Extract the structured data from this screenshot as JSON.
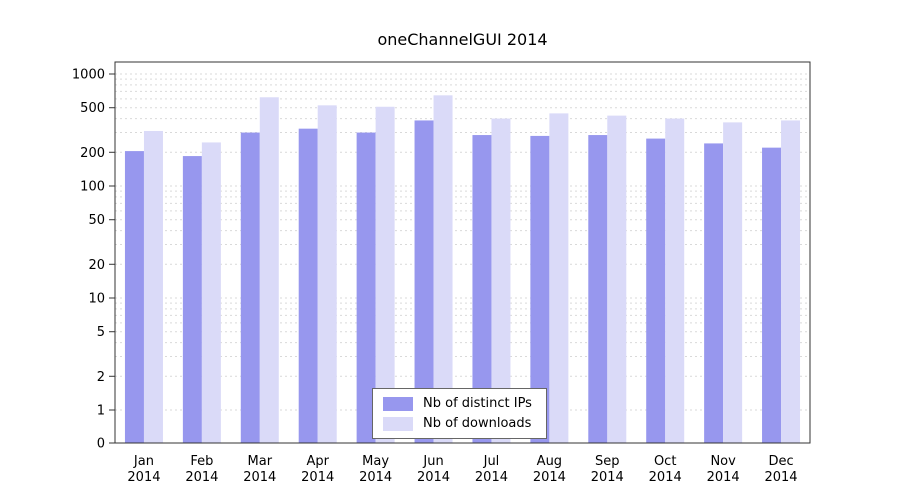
{
  "chart": {
    "background": "#ffffff",
    "colors": {
      "ips": "#9797ee",
      "downloads": "#dadaf8"
    },
    "gridline_color": "#d9d9d9",
    "axis_color": "#333333"
  },
  "chart_data": {
    "type": "bar",
    "title": "oneChannelGUI 2014",
    "categories": [
      "Jan 2014",
      "Feb 2014",
      "Mar 2014",
      "Apr 2014",
      "May 2014",
      "Jun 2014",
      "Jul 2014",
      "Aug 2014",
      "Sep 2014",
      "Oct 2014",
      "Nov 2014",
      "Dec 2014"
    ],
    "series": [
      {
        "name": "Nb of distinct IPs",
        "color_key": "ips",
        "values": [
          205,
          185,
          300,
          325,
          300,
          385,
          285,
          280,
          285,
          265,
          240,
          220
        ]
      },
      {
        "name": "Nb of downloads",
        "color_key": "downloads",
        "values": [
          310,
          245,
          620,
          525,
          510,
          645,
          400,
          445,
          425,
          400,
          370,
          385
        ]
      }
    ],
    "yscale": "log",
    "yticks": [
      0,
      1,
      2,
      5,
      10,
      20,
      50,
      100,
      200,
      500,
      1000
    ],
    "ylim": [
      0,
      1000
    ],
    "xlabel": "",
    "ylabel": "",
    "grid": true,
    "legend_position": "bottom-center"
  }
}
